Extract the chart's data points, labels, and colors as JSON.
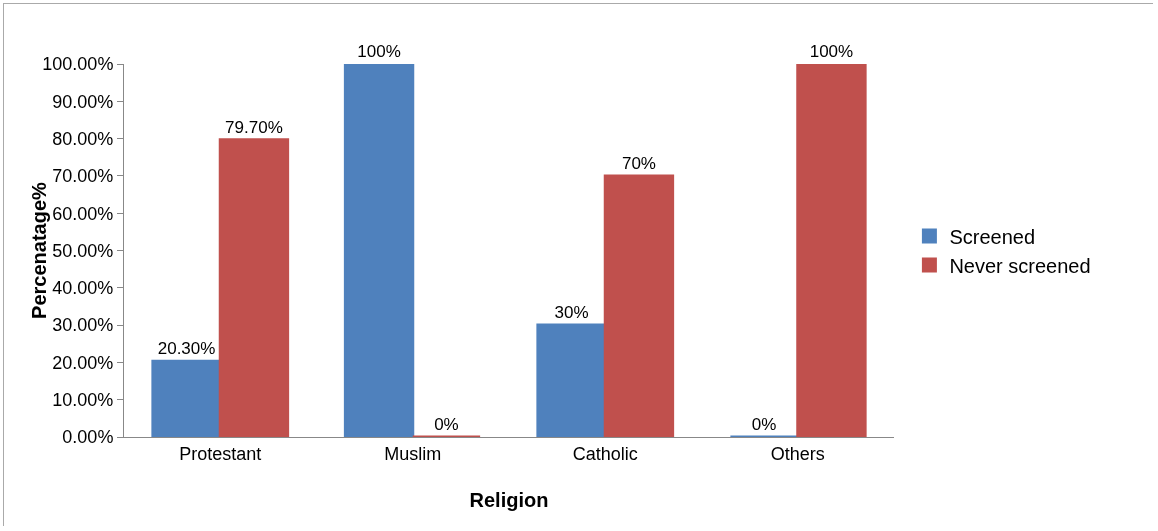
{
  "chart_data": {
    "type": "bar",
    "xlabel": "Religion",
    "ylabel": "Percenatage%",
    "categories": [
      "Protestant",
      "Muslim",
      "Catholic",
      "Others"
    ],
    "series": [
      {
        "name": "Screened",
        "color": "#4f81bd",
        "values": [
          20.3,
          100,
          30,
          0
        ],
        "value_labels": [
          "20.30%",
          "100%",
          "30%",
          "0%"
        ]
      },
      {
        "name": "Never screened",
        "color": "#c0504d",
        "values": [
          79.7,
          0,
          70,
          100
        ],
        "value_labels": [
          "79.70%",
          "0%",
          "70%",
          "100%"
        ]
      }
    ],
    "ylim": [
      0,
      100
    ],
    "yticks": [
      {
        "value": 0,
        "label": "0.00%"
      },
      {
        "value": 10,
        "label": "10.00%"
      },
      {
        "value": 20,
        "label": "20.00%"
      },
      {
        "value": 30,
        "label": "30.00%"
      },
      {
        "value": 40,
        "label": "40.00%"
      },
      {
        "value": 50,
        "label": "50.00%"
      },
      {
        "value": 60,
        "label": "60.00%"
      },
      {
        "value": 70,
        "label": "70.00%"
      },
      {
        "value": 80,
        "label": "80.00%"
      },
      {
        "value": 90,
        "label": "90.00%"
      },
      {
        "value": 100,
        "label": "100.00%"
      }
    ],
    "grid": false,
    "legend": "right"
  }
}
